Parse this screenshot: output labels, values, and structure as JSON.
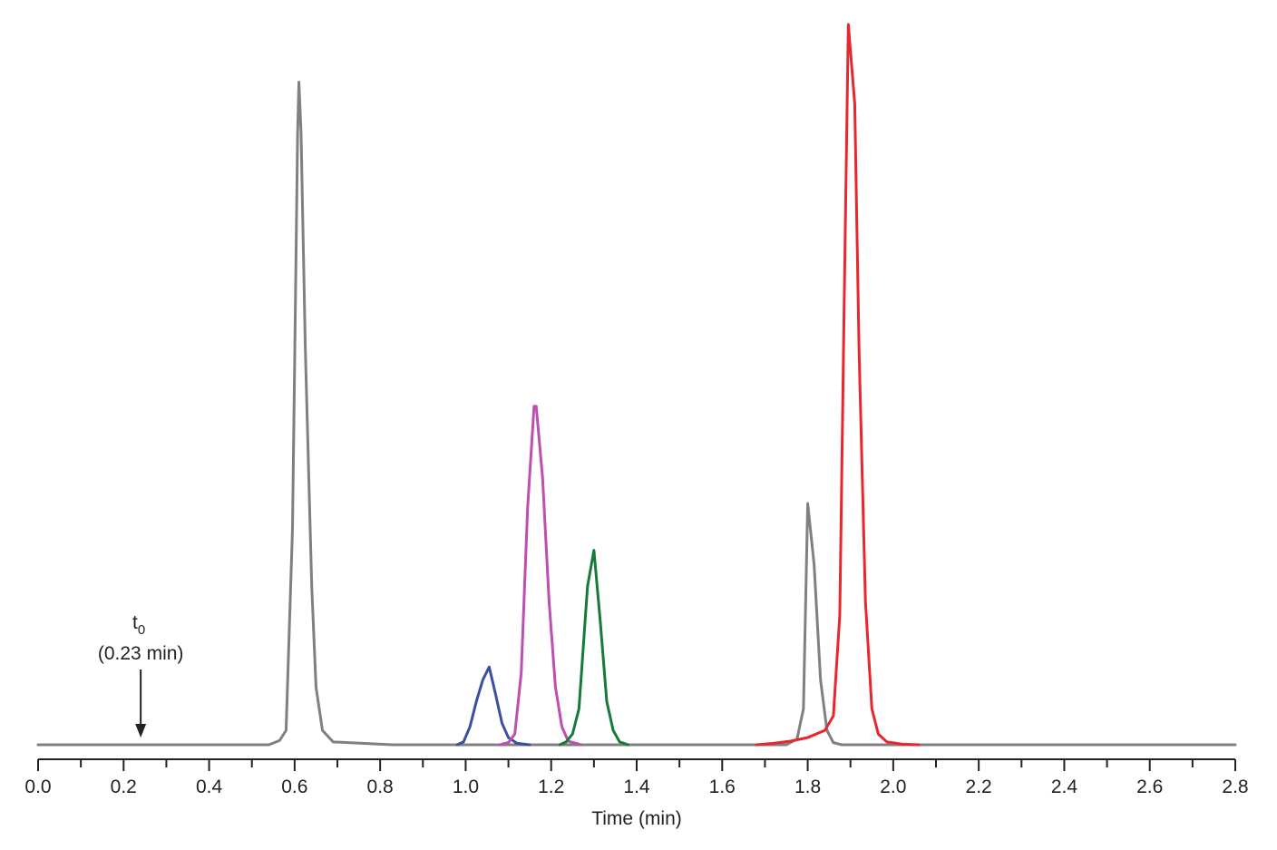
{
  "chart_data": {
    "type": "line",
    "title": "",
    "xlabel": "Time (min)",
    "ylabel": "",
    "xlim": [
      0.0,
      2.8
    ],
    "ylim": [
      0,
      100
    ],
    "x_ticks": [
      "0.0",
      "0.2",
      "0.4",
      "0.6",
      "0.8",
      "1.0",
      "1.2",
      "1.4",
      "1.6",
      "1.8",
      "2.0",
      "2.2",
      "2.4",
      "2.6",
      "2.8"
    ],
    "x_minor_step": 0.1,
    "grid": false,
    "legend": "none",
    "annotations": [
      {
        "main": "t",
        "subscript": "0",
        "detail": "(0.23 min)",
        "x": 0.24,
        "arrow": "down"
      }
    ],
    "series": [
      {
        "color": "#808080",
        "points": [
          [
            0.0,
            0
          ],
          [
            0.54,
            0
          ],
          [
            0.565,
            0.6
          ],
          [
            0.58,
            2
          ],
          [
            0.595,
            30
          ],
          [
            0.607,
            85
          ],
          [
            0.61,
            92
          ],
          [
            0.615,
            85
          ],
          [
            0.625,
            55
          ],
          [
            0.64,
            22
          ],
          [
            0.65,
            8
          ],
          [
            0.665,
            2
          ],
          [
            0.69,
            0.4
          ],
          [
            0.83,
            0
          ],
          [
            1.75,
            0
          ],
          [
            1.775,
            0.8
          ],
          [
            1.79,
            5
          ],
          [
            1.8,
            33.5
          ],
          [
            1.815,
            25
          ],
          [
            1.83,
            9
          ],
          [
            1.845,
            2
          ],
          [
            1.86,
            0.3
          ],
          [
            1.88,
            0
          ],
          [
            2.8,
            0
          ]
        ]
      },
      {
        "color": "#3a4fa0",
        "points": [
          [
            0.98,
            0
          ],
          [
            0.995,
            0.4
          ],
          [
            1.01,
            2.5
          ],
          [
            1.025,
            6
          ],
          [
            1.04,
            9
          ],
          [
            1.055,
            10.8
          ],
          [
            1.07,
            7
          ],
          [
            1.085,
            3
          ],
          [
            1.1,
            1
          ],
          [
            1.12,
            0.2
          ],
          [
            1.15,
            0
          ]
        ]
      },
      {
        "color": "#bd4fb0",
        "points": [
          [
            1.08,
            0
          ],
          [
            1.1,
            0.3
          ],
          [
            1.115,
            1.5
          ],
          [
            1.13,
            10
          ],
          [
            1.145,
            33
          ],
          [
            1.16,
            47
          ],
          [
            1.165,
            47
          ],
          [
            1.18,
            37
          ],
          [
            1.195,
            20
          ],
          [
            1.21,
            8
          ],
          [
            1.225,
            2.5
          ],
          [
            1.24,
            0.5
          ],
          [
            1.27,
            0
          ]
        ]
      },
      {
        "color": "#167a3a",
        "points": [
          [
            1.22,
            0
          ],
          [
            1.235,
            0.4
          ],
          [
            1.25,
            1.5
          ],
          [
            1.265,
            5
          ],
          [
            1.285,
            22
          ],
          [
            1.3,
            27
          ],
          [
            1.315,
            17
          ],
          [
            1.33,
            6
          ],
          [
            1.345,
            2
          ],
          [
            1.36,
            0.4
          ],
          [
            1.38,
            0
          ]
        ]
      },
      {
        "color": "#e8262d",
        "points": [
          [
            1.68,
            0
          ],
          [
            1.72,
            0.2
          ],
          [
            1.76,
            0.5
          ],
          [
            1.8,
            1
          ],
          [
            1.84,
            2
          ],
          [
            1.86,
            4
          ],
          [
            1.875,
            18
          ],
          [
            1.885,
            60
          ],
          [
            1.895,
            100
          ],
          [
            1.91,
            89
          ],
          [
            1.92,
            55
          ],
          [
            1.935,
            20
          ],
          [
            1.95,
            5
          ],
          [
            1.965,
            1.5
          ],
          [
            1.985,
            0.4
          ],
          [
            2.02,
            0.1
          ],
          [
            2.06,
            0
          ]
        ]
      }
    ]
  }
}
